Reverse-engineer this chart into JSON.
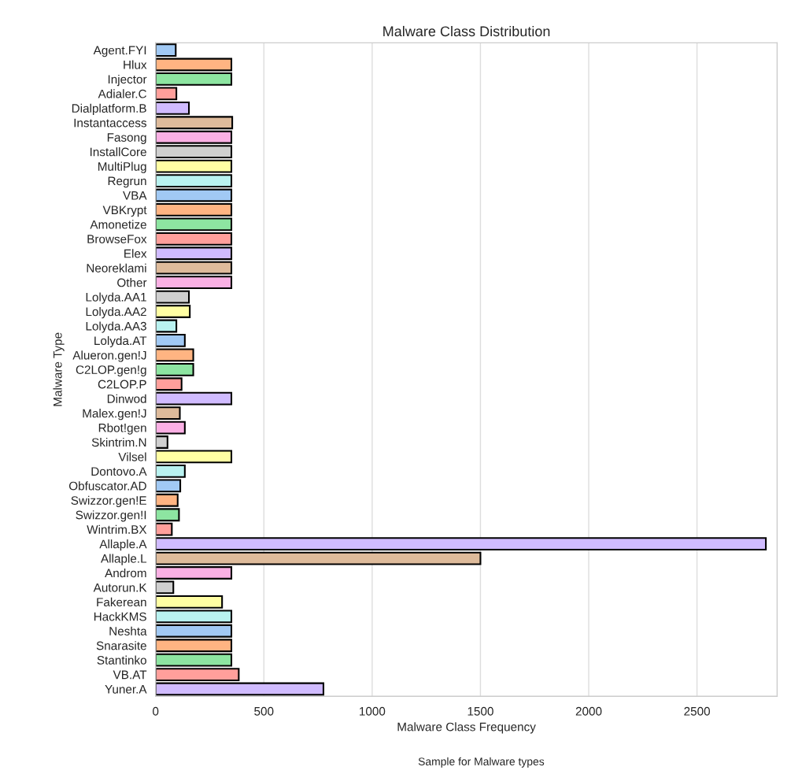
{
  "chart_data": {
    "type": "bar",
    "orientation": "horizontal",
    "title": "Malware Class Distribution",
    "xlabel": "Malware Class Frequency",
    "ylabel": "Malware Type",
    "annotations": [
      "Sample for Malware types"
    ],
    "categories": [
      "Agent.FYI",
      "Hlux",
      "Injector",
      "Adialer.C",
      "Dialplatform.B",
      "Instantaccess",
      "Fasong",
      "InstallCore",
      "MultiPlug",
      "Regrun",
      "VBA",
      "VBKrypt",
      "Amonetize",
      "BrowseFox",
      "Elex",
      "Neoreklami",
      "Other",
      "Lolyda.AA1",
      "Lolyda.AA2",
      "Lolyda.AA3",
      "Lolyda.AT",
      "Alueron.gen!J",
      "C2LOP.gen!g",
      "C2LOP.P",
      "Dinwod",
      "Malex.gen!J",
      "Rbot!gen",
      "Skintrim.N",
      "Vilsel",
      "Dontovo.A",
      "Obfuscator.AD",
      "Swizzor.gen!E",
      "Swizzor.gen!I",
      "Wintrim.BX",
      "Allaple.A",
      "Allaple.L",
      "Androm",
      "Autorun.K",
      "Fakerean",
      "HackKMS",
      "Neshta",
      "Snarasite",
      "Stantinko",
      "VB.AT",
      "Yuner.A"
    ],
    "values": [
      93,
      350,
      350,
      96,
      154,
      354,
      350,
      350,
      350,
      350,
      350,
      350,
      350,
      350,
      350,
      350,
      350,
      154,
      158,
      96,
      135,
      174,
      174,
      120,
      350,
      112,
      135,
      55,
      350,
      135,
      114,
      102,
      108,
      75,
      2818,
      1500,
      350,
      82,
      307,
      350,
      350,
      350,
      350,
      384,
      775
    ],
    "colors": [
      "#a1c9f4",
      "#ffb482",
      "#8de5a1",
      "#ff9f9b",
      "#d0bbff",
      "#debb9b",
      "#fab0e4",
      "#cfcfcf",
      "#fffea3",
      "#b9f2f0",
      "#a1c9f4",
      "#ffb482",
      "#8de5a1",
      "#ff9f9b",
      "#d0bbff",
      "#debb9b",
      "#fab0e4",
      "#cfcfcf",
      "#fffea3",
      "#b9f2f0",
      "#a1c9f4",
      "#ffb482",
      "#8de5a1",
      "#ff9f9b",
      "#d0bbff",
      "#debb9b",
      "#fab0e4",
      "#cfcfcf",
      "#fffea3",
      "#b9f2f0",
      "#a1c9f4",
      "#ffb482",
      "#8de5a1",
      "#ff9f9b",
      "#d0bbff",
      "#debb9b",
      "#fab0e4",
      "#cfcfcf",
      "#fffea3",
      "#b9f2f0",
      "#a1c9f4",
      "#ffb482",
      "#8de5a1",
      "#ff9f9b",
      "#d0bbff"
    ],
    "xlim": [
      0,
      2870
    ],
    "xticks": [
      0,
      500,
      1000,
      1500,
      2000,
      2500
    ],
    "grid": "x",
    "legend": false
  }
}
